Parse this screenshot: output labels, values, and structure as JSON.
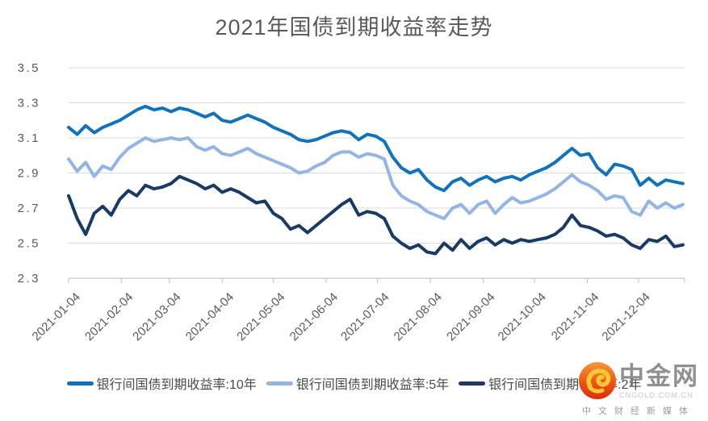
{
  "title": "2021年国债到期收益率走势",
  "chart_data": {
    "type": "line",
    "title": "2021年国债到期收益率走势",
    "xlabel": "",
    "ylabel": "",
    "ylim": [
      2.3,
      3.5
    ],
    "grid": true,
    "legend_position": "bottom",
    "y_ticks": [
      "3.5",
      "3.3",
      "3.1",
      "2.9",
      "2.7",
      "2.5",
      "2.3"
    ],
    "x_ticks": [
      {
        "label": "2021-01-04",
        "day": 4
      },
      {
        "label": "2021-02-04",
        "day": 35
      },
      {
        "label": "2021-03-04",
        "day": 63
      },
      {
        "label": "2021-04-04",
        "day": 94
      },
      {
        "label": "2021-05-04",
        "day": 124
      },
      {
        "label": "2021-06-04",
        "day": 155
      },
      {
        "label": "2021-07-04",
        "day": 185
      },
      {
        "label": "2021-08-04",
        "day": 216
      },
      {
        "label": "2021-09-04",
        "day": 247
      },
      {
        "label": "2021-10-04",
        "day": 277
      },
      {
        "label": "2021-11-04",
        "day": 308
      },
      {
        "label": "2021-12-04",
        "day": 338
      }
    ],
    "x_unit": "day_of_year_2021",
    "days": [
      4,
      9,
      14,
      19,
      24,
      29,
      34,
      39,
      44,
      49,
      54,
      59,
      64,
      69,
      74,
      79,
      84,
      89,
      94,
      99,
      104,
      109,
      114,
      119,
      124,
      129,
      134,
      139,
      144,
      149,
      154,
      159,
      164,
      169,
      174,
      179,
      184,
      189,
      194,
      199,
      204,
      209,
      214,
      219,
      224,
      229,
      234,
      239,
      244,
      249,
      254,
      259,
      264,
      269,
      274,
      279,
      284,
      289,
      294,
      299,
      304,
      309,
      314,
      319,
      324,
      329,
      334,
      339,
      344,
      349,
      354,
      359,
      364
    ],
    "series": [
      {
        "name": "银行间国债到期收益率:10年",
        "color": "#1172BA",
        "values": [
          3.16,
          3.12,
          3.17,
          3.13,
          3.16,
          3.18,
          3.2,
          3.23,
          3.26,
          3.28,
          3.26,
          3.27,
          3.25,
          3.27,
          3.26,
          3.24,
          3.22,
          3.24,
          3.2,
          3.19,
          3.21,
          3.23,
          3.21,
          3.19,
          3.16,
          3.14,
          3.12,
          3.09,
          3.08,
          3.09,
          3.11,
          3.13,
          3.14,
          3.13,
          3.09,
          3.12,
          3.11,
          3.08,
          2.99,
          2.93,
          2.9,
          2.92,
          2.86,
          2.82,
          2.8,
          2.85,
          2.87,
          2.83,
          2.86,
          2.88,
          2.85,
          2.87,
          2.88,
          2.86,
          2.89,
          2.91,
          2.93,
          2.96,
          3.0,
          3.04,
          3.0,
          3.01,
          2.93,
          2.89,
          2.95,
          2.94,
          2.92,
          2.83,
          2.87,
          2.83,
          2.86,
          2.85,
          2.84
        ]
      },
      {
        "name": "银行间国债到期收益率:5年",
        "color": "#93B5E1",
        "values": [
          2.98,
          2.91,
          2.96,
          2.88,
          2.94,
          2.92,
          2.99,
          3.04,
          3.07,
          3.1,
          3.08,
          3.09,
          3.1,
          3.09,
          3.1,
          3.05,
          3.03,
          3.05,
          3.01,
          3.0,
          3.02,
          3.04,
          3.01,
          2.99,
          2.97,
          2.95,
          2.93,
          2.9,
          2.91,
          2.94,
          2.96,
          3.0,
          3.02,
          3.02,
          2.99,
          3.01,
          3.0,
          2.98,
          2.83,
          2.77,
          2.74,
          2.72,
          2.68,
          2.66,
          2.64,
          2.7,
          2.72,
          2.67,
          2.72,
          2.74,
          2.67,
          2.72,
          2.76,
          2.73,
          2.74,
          2.76,
          2.78,
          2.81,
          2.85,
          2.89,
          2.85,
          2.83,
          2.8,
          2.75,
          2.77,
          2.76,
          2.68,
          2.66,
          2.74,
          2.7,
          2.73,
          2.7,
          2.72
        ]
      },
      {
        "name": "银行间国债到期收益率:2年",
        "color": "#1A3A64",
        "values": [
          2.77,
          2.64,
          2.55,
          2.67,
          2.71,
          2.66,
          2.75,
          2.8,
          2.77,
          2.83,
          2.81,
          2.82,
          2.84,
          2.88,
          2.86,
          2.84,
          2.81,
          2.83,
          2.79,
          2.81,
          2.79,
          2.76,
          2.73,
          2.74,
          2.67,
          2.64,
          2.58,
          2.6,
          2.56,
          2.6,
          2.64,
          2.68,
          2.72,
          2.75,
          2.66,
          2.68,
          2.67,
          2.64,
          2.54,
          2.5,
          2.47,
          2.49,
          2.45,
          2.44,
          2.5,
          2.46,
          2.52,
          2.47,
          2.51,
          2.53,
          2.49,
          2.52,
          2.5,
          2.52,
          2.51,
          2.52,
          2.53,
          2.55,
          2.59,
          2.66,
          2.6,
          2.59,
          2.57,
          2.54,
          2.55,
          2.53,
          2.49,
          2.47,
          2.52,
          2.51,
          2.54,
          2.48,
          2.49
        ]
      }
    ]
  },
  "colors": {
    "grid": "#DADADA",
    "axis": "#C6C6C6",
    "tick_text": "#595959",
    "title_text": "#595959",
    "logo_red": "#E03312",
    "logo_orange": "#F59A35",
    "logo_gold": "#FFC636"
  },
  "watermark": {
    "brand": "中金网",
    "domain": "CNGOLD.COM.CN",
    "slogan": "中文财经新媒体"
  }
}
